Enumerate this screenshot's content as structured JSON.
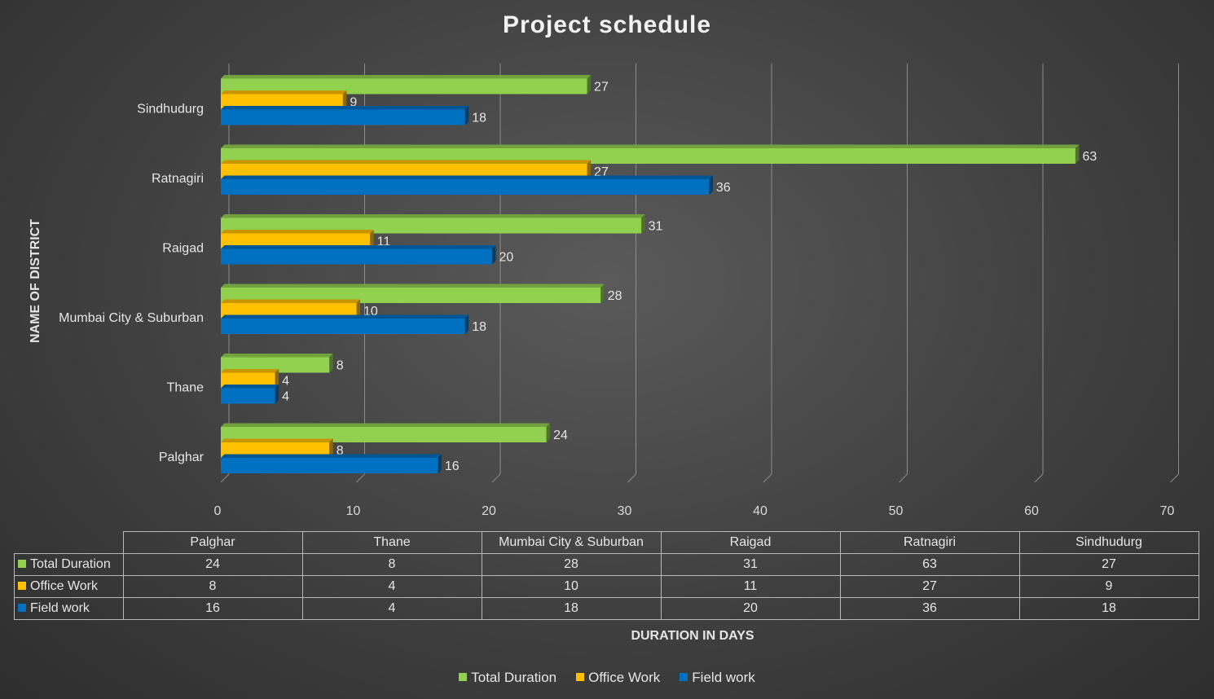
{
  "chart_data": {
    "type": "bar",
    "orientation": "horizontal",
    "title": "Project schedule",
    "xlabel": "DURATION IN DAYS",
    "ylabel": "NAME OF DISTRICT",
    "xlim": [
      0,
      70
    ],
    "xticks": [
      "0",
      "10",
      "20",
      "30",
      "40",
      "50",
      "60",
      "70"
    ],
    "categories": [
      "Palghar",
      "Thane",
      "Mumbai City & Suburban",
      "Raigad",
      "Ratnagiri",
      "Sindhudurg"
    ],
    "series": [
      {
        "name": "Total Duration",
        "color": "#92d050",
        "values": [
          24,
          8,
          28,
          31,
          63,
          27
        ]
      },
      {
        "name": "Office Work",
        "color": "#ffc000",
        "values": [
          8,
          4,
          10,
          11,
          27,
          9
        ]
      },
      {
        "name": "Field work",
        "color": "#0070c0",
        "values": [
          16,
          4,
          18,
          20,
          36,
          18
        ]
      }
    ],
    "data_labels": true,
    "grid": true,
    "data_table": true,
    "legend": "bottom"
  }
}
